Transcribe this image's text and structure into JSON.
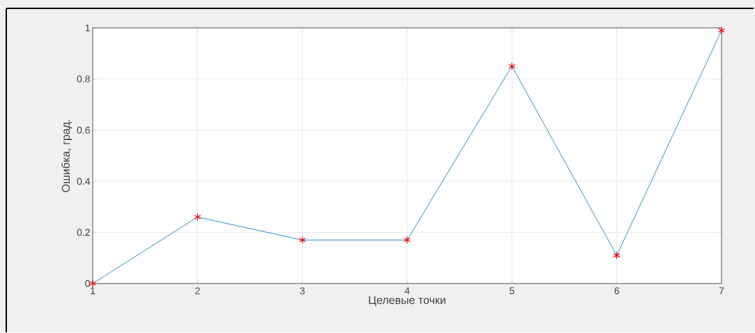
{
  "chart_data": {
    "type": "line",
    "xlabel": "Целевые точки",
    "ylabel": "Ошибка, град.",
    "x": [
      1,
      2,
      3,
      4,
      5,
      6,
      7
    ],
    "series": [
      {
        "color": "#2f8fd0",
        "marker": "none",
        "values": [
          0,
          0.26,
          0.17,
          0.17,
          0.85,
          0.11,
          0.99
        ]
      },
      {
        "type": "scatter",
        "color": "#ff0000",
        "marker": "cross",
        "values": [
          0,
          0.26,
          0.17,
          0.17,
          0.85,
          0.11,
          0.99
        ]
      }
    ],
    "xlim": [
      1,
      7
    ],
    "xticks": [
      1,
      2,
      3,
      4,
      5,
      6,
      7
    ],
    "ylim": [
      0,
      1
    ],
    "yticks": [
      0,
      0.2,
      0.4,
      0.6,
      0.8,
      1
    ],
    "grid": true
  }
}
